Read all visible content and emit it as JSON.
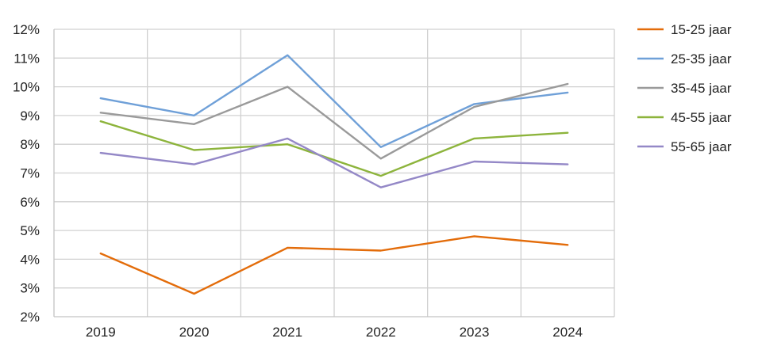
{
  "chart_data": {
    "type": "line",
    "title": "",
    "xlabel": "",
    "ylabel": "",
    "x": [
      "2019",
      "2020",
      "2021",
      "2022",
      "2023",
      "2024"
    ],
    "ylim": [
      2,
      12
    ],
    "yticks": [
      2,
      3,
      4,
      5,
      6,
      7,
      8,
      9,
      10,
      11,
      12
    ],
    "ytick_suffix": "%",
    "grid": true,
    "legend": "right",
    "series": [
      {
        "name": "15-25 jaar",
        "color": "#e36c0a",
        "values": [
          4.2,
          2.8,
          4.4,
          4.3,
          4.8,
          4.5
        ]
      },
      {
        "name": "25-35 jaar",
        "color": "#6fa0d8",
        "values": [
          9.6,
          9.0,
          11.1,
          7.9,
          9.4,
          9.8
        ]
      },
      {
        "name": "35-45 jaar",
        "color": "#9a9a9a",
        "values": [
          9.1,
          8.7,
          10.0,
          7.5,
          9.3,
          10.1
        ]
      },
      {
        "name": "45-55 jaar",
        "color": "#8db43c",
        "values": [
          8.8,
          7.8,
          8.0,
          6.9,
          8.2,
          8.4
        ]
      },
      {
        "name": "55-65 jaar",
        "color": "#9488c7",
        "values": [
          7.7,
          7.3,
          8.2,
          6.5,
          7.4,
          7.3
        ]
      }
    ]
  }
}
